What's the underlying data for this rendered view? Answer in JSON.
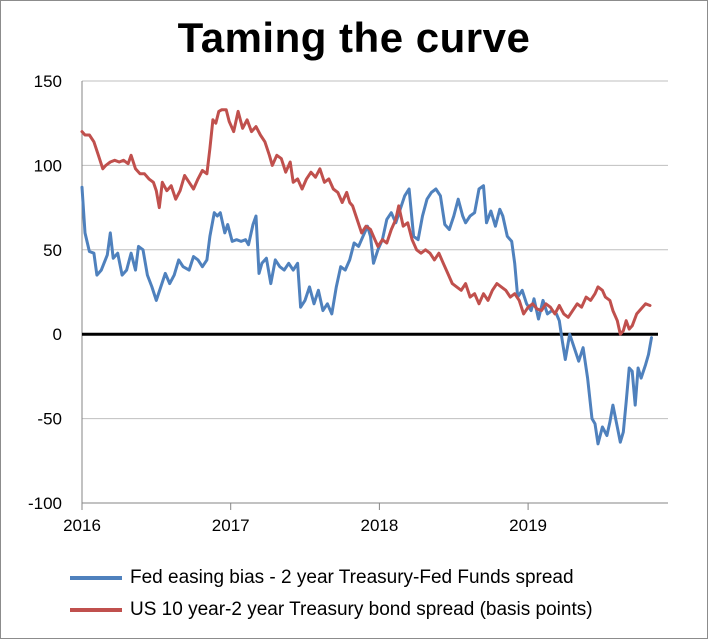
{
  "chart_data": {
    "type": "line",
    "title": "Taming the curve",
    "xlabel": "",
    "ylabel": "",
    "ylim": [
      -100,
      150
    ],
    "yticks": [
      -100,
      -50,
      0,
      50,
      100,
      150
    ],
    "xlim": [
      2016.0,
      2019.85
    ],
    "xticks": [
      2016,
      2017,
      2018,
      2019
    ],
    "xtick_labels": [
      "2016",
      "2017",
      "2018",
      "2019"
    ],
    "grid": "horizontal",
    "legend_position": "bottom",
    "zero_line": true,
    "series": [
      {
        "name": "Fed easing bias - 2 year Treasury-Fed Funds spread",
        "color": "#4f81bd",
        "points": [
          [
            2016.0,
            87
          ],
          [
            2016.02,
            60
          ],
          [
            2016.05,
            49
          ],
          [
            2016.08,
            48
          ],
          [
            2016.1,
            35
          ],
          [
            2016.13,
            38
          ],
          [
            2016.17,
            47
          ],
          [
            2016.19,
            60
          ],
          [
            2016.21,
            45
          ],
          [
            2016.24,
            48
          ],
          [
            2016.27,
            35
          ],
          [
            2016.3,
            38
          ],
          [
            2016.33,
            48
          ],
          [
            2016.36,
            38
          ],
          [
            2016.38,
            52
          ],
          [
            2016.41,
            50
          ],
          [
            2016.44,
            35
          ],
          [
            2016.47,
            28
          ],
          [
            2016.5,
            20
          ],
          [
            2016.53,
            28
          ],
          [
            2016.56,
            36
          ],
          [
            2016.59,
            30
          ],
          [
            2016.62,
            35
          ],
          [
            2016.65,
            44
          ],
          [
            2016.68,
            40
          ],
          [
            2016.72,
            38
          ],
          [
            2016.75,
            46
          ],
          [
            2016.78,
            44
          ],
          [
            2016.81,
            40
          ],
          [
            2016.84,
            44
          ],
          [
            2016.86,
            58
          ],
          [
            2016.89,
            72
          ],
          [
            2016.91,
            70
          ],
          [
            2016.93,
            72
          ],
          [
            2016.96,
            60
          ],
          [
            2016.98,
            65
          ],
          [
            2017.01,
            55
          ],
          [
            2017.04,
            56
          ],
          [
            2017.07,
            55
          ],
          [
            2017.1,
            56
          ],
          [
            2017.12,
            53
          ],
          [
            2017.15,
            65
          ],
          [
            2017.17,
            70
          ],
          [
            2017.19,
            36
          ],
          [
            2017.21,
            42
          ],
          [
            2017.24,
            45
          ],
          [
            2017.27,
            30
          ],
          [
            2017.3,
            44
          ],
          [
            2017.33,
            40
          ],
          [
            2017.36,
            38
          ],
          [
            2017.39,
            42
          ],
          [
            2017.42,
            38
          ],
          [
            2017.45,
            42
          ],
          [
            2017.47,
            16
          ],
          [
            2017.5,
            20
          ],
          [
            2017.53,
            28
          ],
          [
            2017.56,
            18
          ],
          [
            2017.59,
            26
          ],
          [
            2017.62,
            14
          ],
          [
            2017.65,
            18
          ],
          [
            2017.68,
            12
          ],
          [
            2017.71,
            28
          ],
          [
            2017.74,
            40
          ],
          [
            2017.77,
            38
          ],
          [
            2017.8,
            44
          ],
          [
            2017.83,
            54
          ],
          [
            2017.86,
            52
          ],
          [
            2017.89,
            58
          ],
          [
            2017.92,
            64
          ],
          [
            2017.94,
            58
          ],
          [
            2017.96,
            42
          ],
          [
            2017.99,
            50
          ],
          [
            2018.02,
            56
          ],
          [
            2018.05,
            68
          ],
          [
            2018.08,
            72
          ],
          [
            2018.11,
            66
          ],
          [
            2018.14,
            74
          ],
          [
            2018.17,
            82
          ],
          [
            2018.2,
            86
          ],
          [
            2018.23,
            58
          ],
          [
            2018.26,
            56
          ],
          [
            2018.29,
            70
          ],
          [
            2018.32,
            80
          ],
          [
            2018.35,
            84
          ],
          [
            2018.38,
            86
          ],
          [
            2018.41,
            82
          ],
          [
            2018.44,
            65
          ],
          [
            2018.47,
            62
          ],
          [
            2018.5,
            70
          ],
          [
            2018.53,
            80
          ],
          [
            2018.56,
            70
          ],
          [
            2018.58,
            66
          ],
          [
            2018.61,
            70
          ],
          [
            2018.64,
            72
          ],
          [
            2018.67,
            86
          ],
          [
            2018.7,
            88
          ],
          [
            2018.72,
            66
          ],
          [
            2018.75,
            73
          ],
          [
            2018.78,
            64
          ],
          [
            2018.81,
            74
          ],
          [
            2018.83,
            70
          ],
          [
            2018.86,
            58
          ],
          [
            2018.89,
            55
          ],
          [
            2018.91,
            42
          ],
          [
            2018.93,
            22
          ],
          [
            2018.96,
            26
          ],
          [
            2018.99,
            18
          ],
          [
            2019.02,
            14
          ],
          [
            2019.04,
            21
          ],
          [
            2019.07,
            9
          ],
          [
            2019.1,
            20
          ],
          [
            2019.13,
            12
          ],
          [
            2019.16,
            14
          ],
          [
            2019.19,
            12
          ],
          [
            2019.21,
            8
          ],
          [
            2019.23,
            -4
          ],
          [
            2019.25,
            -15
          ],
          [
            2019.28,
            0
          ],
          [
            2019.31,
            -8
          ],
          [
            2019.34,
            -16
          ],
          [
            2019.37,
            -8
          ],
          [
            2019.4,
            -26
          ],
          [
            2019.43,
            -50
          ],
          [
            2019.45,
            -53
          ],
          [
            2019.47,
            -65
          ],
          [
            2019.5,
            -55
          ],
          [
            2019.53,
            -60
          ],
          [
            2019.55,
            -52
          ],
          [
            2019.57,
            -42
          ],
          [
            2019.6,
            -55
          ],
          [
            2019.62,
            -64
          ],
          [
            2019.64,
            -58
          ],
          [
            2019.66,
            -40
          ],
          [
            2019.68,
            -20
          ],
          [
            2019.7,
            -22
          ],
          [
            2019.72,
            -42
          ],
          [
            2019.74,
            -20
          ],
          [
            2019.76,
            -26
          ],
          [
            2019.79,
            -18
          ],
          [
            2019.81,
            -12
          ],
          [
            2019.83,
            -2
          ]
        ]
      },
      {
        "name": "US 10 year-2 year Treasury bond spread (basis points)",
        "color": "#c0504d",
        "points": [
          [
            2016.0,
            120
          ],
          [
            2016.02,
            118
          ],
          [
            2016.05,
            118
          ],
          [
            2016.08,
            114
          ],
          [
            2016.11,
            106
          ],
          [
            2016.14,
            98
          ],
          [
            2016.16,
            100
          ],
          [
            2016.19,
            102
          ],
          [
            2016.22,
            103
          ],
          [
            2016.25,
            102
          ],
          [
            2016.28,
            103
          ],
          [
            2016.31,
            101
          ],
          [
            2016.33,
            106
          ],
          [
            2016.36,
            98
          ],
          [
            2016.39,
            95
          ],
          [
            2016.42,
            95
          ],
          [
            2016.45,
            92
          ],
          [
            2016.48,
            90
          ],
          [
            2016.5,
            85
          ],
          [
            2016.52,
            75
          ],
          [
            2016.54,
            90
          ],
          [
            2016.57,
            85
          ],
          [
            2016.6,
            88
          ],
          [
            2016.63,
            80
          ],
          [
            2016.66,
            85
          ],
          [
            2016.69,
            94
          ],
          [
            2016.72,
            90
          ],
          [
            2016.75,
            86
          ],
          [
            2016.78,
            92
          ],
          [
            2016.81,
            97
          ],
          [
            2016.84,
            95
          ],
          [
            2016.86,
            110
          ],
          [
            2016.88,
            127
          ],
          [
            2016.9,
            125
          ],
          [
            2016.92,
            132
          ],
          [
            2016.94,
            133
          ],
          [
            2016.97,
            133
          ],
          [
            2016.99,
            126
          ],
          [
            2017.02,
            120
          ],
          [
            2017.05,
            132
          ],
          [
            2017.08,
            122
          ],
          [
            2017.11,
            127
          ],
          [
            2017.14,
            120
          ],
          [
            2017.17,
            123
          ],
          [
            2017.2,
            118
          ],
          [
            2017.23,
            114
          ],
          [
            2017.26,
            106
          ],
          [
            2017.28,
            100
          ],
          [
            2017.31,
            106
          ],
          [
            2017.34,
            104
          ],
          [
            2017.37,
            96
          ],
          [
            2017.4,
            102
          ],
          [
            2017.42,
            90
          ],
          [
            2017.45,
            92
          ],
          [
            2017.48,
            86
          ],
          [
            2017.51,
            92
          ],
          [
            2017.54,
            96
          ],
          [
            2017.57,
            93
          ],
          [
            2017.6,
            98
          ],
          [
            2017.63,
            90
          ],
          [
            2017.66,
            92
          ],
          [
            2017.69,
            86
          ],
          [
            2017.72,
            84
          ],
          [
            2017.75,
            78
          ],
          [
            2017.78,
            84
          ],
          [
            2017.8,
            78
          ],
          [
            2017.82,
            76
          ],
          [
            2017.85,
            68
          ],
          [
            2017.88,
            60
          ],
          [
            2017.91,
            64
          ],
          [
            2017.94,
            62
          ],
          [
            2017.97,
            56
          ],
          [
            2017.99,
            52
          ],
          [
            2018.02,
            56
          ],
          [
            2018.05,
            54
          ],
          [
            2018.08,
            62
          ],
          [
            2018.11,
            68
          ],
          [
            2018.13,
            76
          ],
          [
            2018.16,
            64
          ],
          [
            2018.19,
            66
          ],
          [
            2018.22,
            56
          ],
          [
            2018.25,
            50
          ],
          [
            2018.28,
            48
          ],
          [
            2018.31,
            50
          ],
          [
            2018.34,
            48
          ],
          [
            2018.37,
            44
          ],
          [
            2018.4,
            48
          ],
          [
            2018.43,
            42
          ],
          [
            2018.46,
            36
          ],
          [
            2018.49,
            30
          ],
          [
            2018.52,
            28
          ],
          [
            2018.55,
            26
          ],
          [
            2018.58,
            30
          ],
          [
            2018.61,
            22
          ],
          [
            2018.64,
            24
          ],
          [
            2018.67,
            18
          ],
          [
            2018.7,
            24
          ],
          [
            2018.73,
            20
          ],
          [
            2018.76,
            26
          ],
          [
            2018.79,
            30
          ],
          [
            2018.82,
            28
          ],
          [
            2018.85,
            26
          ],
          [
            2018.88,
            22
          ],
          [
            2018.91,
            24
          ],
          [
            2018.94,
            20
          ],
          [
            2018.97,
            12
          ],
          [
            2019.0,
            16
          ],
          [
            2019.03,
            18
          ],
          [
            2019.06,
            15
          ],
          [
            2019.09,
            14
          ],
          [
            2019.12,
            18
          ],
          [
            2019.15,
            16
          ],
          [
            2019.18,
            12
          ],
          [
            2019.21,
            17
          ],
          [
            2019.24,
            12
          ],
          [
            2019.27,
            10
          ],
          [
            2019.3,
            14
          ],
          [
            2019.33,
            18
          ],
          [
            2019.36,
            16
          ],
          [
            2019.39,
            22
          ],
          [
            2019.42,
            20
          ],
          [
            2019.45,
            24
          ],
          [
            2019.47,
            28
          ],
          [
            2019.5,
            26
          ],
          [
            2019.52,
            22
          ],
          [
            2019.55,
            20
          ],
          [
            2019.57,
            14
          ],
          [
            2019.6,
            8
          ],
          [
            2019.62,
            0
          ],
          [
            2019.64,
            2
          ],
          [
            2019.66,
            8
          ],
          [
            2019.68,
            3
          ],
          [
            2019.7,
            5
          ],
          [
            2019.73,
            12
          ],
          [
            2019.76,
            15
          ],
          [
            2019.79,
            18
          ],
          [
            2019.82,
            17
          ]
        ]
      }
    ]
  }
}
